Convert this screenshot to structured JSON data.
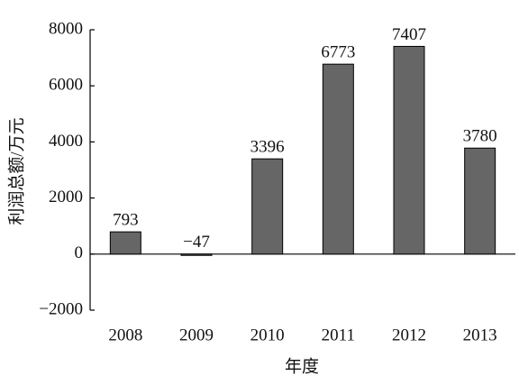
{
  "chart_data": {
    "type": "bar",
    "x_label": "年度",
    "y_label": "利润总额/万元",
    "categories": [
      "2008",
      "2009",
      "2010",
      "2011",
      "2012",
      "2013"
    ],
    "values": [
      793,
      -47,
      3396,
      6773,
      7407,
      3780
    ],
    "value_labels": [
      "793",
      "−47",
      "3396",
      "6773",
      "7407",
      "3780"
    ],
    "color": "#666666",
    "ylim": [
      -2000,
      8000
    ],
    "yticks": [
      {
        "value": -2000,
        "label": "−2000"
      },
      0,
      2000,
      4000,
      6000,
      8000
    ],
    "grid": false
  }
}
